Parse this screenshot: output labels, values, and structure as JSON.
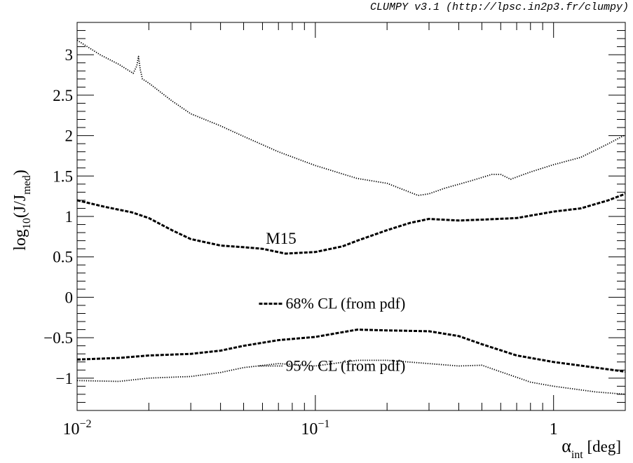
{
  "banner": "CLUMPY v3.1 (http://lpsc.in2p3.fr/clumpy)",
  "chart_data": {
    "type": "line",
    "title": "",
    "xlabel": {
      "base": "α",
      "sub": "int",
      "suffix": " [deg]"
    },
    "ylabel": {
      "prefix": "log",
      "sub1": "10",
      "mid": "(J/J",
      "sub2": "med",
      "suffix": ")"
    },
    "xscale": "log",
    "xlim": [
      0.01,
      2.0
    ],
    "ylim": [
      -1.4,
      3.4
    ],
    "grid": false,
    "x_ticks": [
      {
        "value": 0.01,
        "base": "10",
        "exp": "−2"
      },
      {
        "value": 0.1,
        "base": "10",
        "exp": "−1"
      },
      {
        "value": 1,
        "base": "1",
        "exp": ""
      }
    ],
    "y_ticks": [
      {
        "value": -1,
        "label": "−1"
      },
      {
        "value": -0.5,
        "label": "−0.5"
      },
      {
        "value": 0,
        "label": "0"
      },
      {
        "value": 0.5,
        "label": "0.5"
      },
      {
        "value": 1,
        "label": "1"
      },
      {
        "value": 1.5,
        "label": "1.5"
      },
      {
        "value": 2,
        "label": "2"
      },
      {
        "value": 2.5,
        "label": "2.5"
      },
      {
        "value": 3,
        "label": "3"
      }
    ],
    "series": [
      {
        "style": "dotted",
        "x": [
          0.01,
          0.0125,
          0.015,
          0.0172,
          0.0178,
          0.0181,
          0.0184,
          0.0188,
          0.02,
          0.025,
          0.03,
          0.04,
          0.05,
          0.07,
          0.1,
          0.15,
          0.2,
          0.27,
          0.3,
          0.35,
          0.45,
          0.55,
          0.6,
          0.66,
          0.8,
          1.0,
          1.3,
          1.7,
          2.0
        ],
        "y": [
          3.18,
          3.0,
          2.88,
          2.77,
          2.86,
          2.98,
          2.82,
          2.7,
          2.65,
          2.43,
          2.27,
          2.12,
          1.99,
          1.8,
          1.63,
          1.47,
          1.41,
          1.26,
          1.28,
          1.35,
          1.44,
          1.52,
          1.52,
          1.46,
          1.55,
          1.64,
          1.73,
          1.9,
          2.01
        ]
      },
      {
        "style": "dashed",
        "x": [
          0.01,
          0.013,
          0.017,
          0.02,
          0.025,
          0.03,
          0.04,
          0.05,
          0.06,
          0.075,
          0.1,
          0.13,
          0.15,
          0.2,
          0.25,
          0.3,
          0.4,
          0.5,
          0.7,
          1.0,
          1.3,
          1.7,
          2.0
        ],
        "y": [
          1.2,
          1.12,
          1.05,
          0.98,
          0.83,
          0.72,
          0.64,
          0.62,
          0.6,
          0.54,
          0.56,
          0.63,
          0.7,
          0.83,
          0.92,
          0.97,
          0.95,
          0.96,
          0.98,
          1.06,
          1.1,
          1.2,
          1.28
        ]
      },
      {
        "style": "dashed",
        "x": [
          0.01,
          0.015,
          0.02,
          0.03,
          0.04,
          0.05,
          0.07,
          0.1,
          0.15,
          0.2,
          0.3,
          0.4,
          0.5,
          0.7,
          1.0,
          1.5,
          2.0
        ],
        "y": [
          -0.77,
          -0.75,
          -0.72,
          -0.7,
          -0.66,
          -0.6,
          -0.53,
          -0.49,
          -0.4,
          -0.41,
          -0.42,
          -0.48,
          -0.58,
          -0.72,
          -0.8,
          -0.87,
          -0.92
        ]
      },
      {
        "style": "dotted",
        "x": [
          0.01,
          0.015,
          0.02,
          0.03,
          0.04,
          0.05,
          0.07,
          0.1,
          0.15,
          0.2,
          0.3,
          0.4,
          0.5,
          0.7,
          0.8,
          1.0,
          1.5,
          2.0
        ],
        "y": [
          -1.03,
          -1.04,
          -1.0,
          -0.98,
          -0.93,
          -0.87,
          -0.82,
          -0.85,
          -0.78,
          -0.78,
          -0.82,
          -0.85,
          -0.84,
          -0.99,
          -1.05,
          -1.1,
          -1.17,
          -1.2
        ]
      }
    ],
    "annotations": [
      {
        "text": "M15",
        "x": 0.062,
        "y": 0.66
      }
    ],
    "legend": [
      {
        "style": "dashed",
        "text": "68% CL (from pdf)",
        "x": 0.058,
        "y": -0.08
      },
      {
        "style": "dotted",
        "text": "95% CL (from pdf)",
        "x": 0.058,
        "y": -0.85
      }
    ]
  }
}
